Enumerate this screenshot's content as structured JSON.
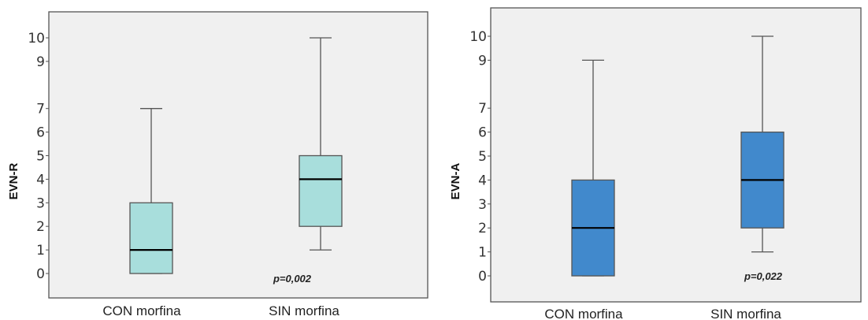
{
  "chart_data": [
    {
      "type": "box",
      "ylabel": "EVN-R",
      "xlabel": "",
      "title": "",
      "categories": [
        "CON morfina",
        "SIN morfina"
      ],
      "yticks": [
        0,
        1,
        2,
        3,
        4,
        5,
        6,
        7,
        9,
        10
      ],
      "boxes": [
        {
          "min": 0,
          "q1": 0,
          "median": 1,
          "q3": 3,
          "max": 7
        },
        {
          "min": 1,
          "q1": 2,
          "median": 4,
          "q3": 5,
          "max": 10
        }
      ],
      "box_color": "#a8dedc",
      "annotation": "p=0,002",
      "grid": false
    },
    {
      "type": "box",
      "ylabel": "EVN-A",
      "xlabel": "",
      "title": "",
      "categories": [
        "CON morfina",
        "SIN morfina"
      ],
      "yticks": [
        0,
        1,
        2,
        3,
        4,
        5,
        6,
        7,
        9,
        10
      ],
      "boxes": [
        {
          "min": 0,
          "q1": 0,
          "median": 2,
          "q3": 4,
          "max": 9
        },
        {
          "min": 1,
          "q1": 2,
          "median": 4,
          "q3": 6,
          "max": 10
        }
      ],
      "box_color": "#4189cc",
      "annotation": "p=0,022",
      "grid": false
    }
  ],
  "colors": {
    "plot_bg": "#f0f0f0",
    "frame": "#555555",
    "whisker": "#555555",
    "median": "#000000"
  }
}
